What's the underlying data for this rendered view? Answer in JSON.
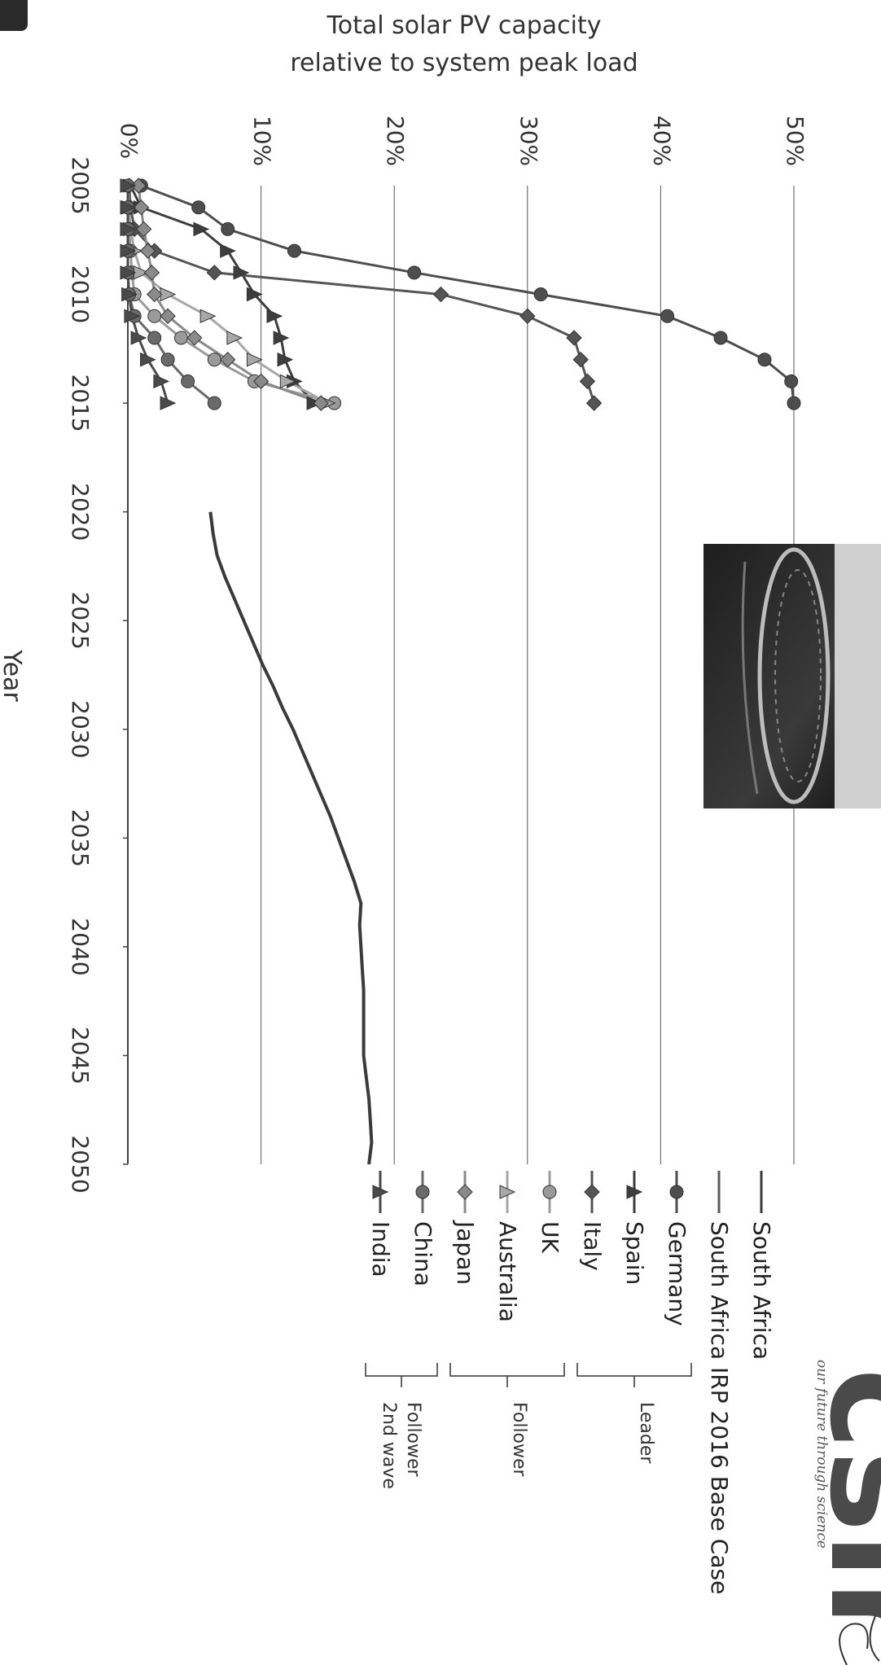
{
  "chart_data": {
    "type": "line",
    "title": "Total solar PV capacity relative to system peak load",
    "title_lines": [
      "Total solar PV capacity",
      "relative to system peak load"
    ],
    "xlabel": "Year",
    "ylabel": "",
    "xlim": [
      2005,
      2050
    ],
    "ylim": [
      0,
      0.5
    ],
    "x_ticks": [
      "2005",
      "2010",
      "2015",
      "2020",
      "2025",
      "2030",
      "2035",
      "2040",
      "2045",
      "2050"
    ],
    "y_ticks": [
      "0%",
      "10%",
      "20%",
      "30%",
      "40%",
      "50%"
    ],
    "grid": true,
    "orientation": "page rotated 90 degrees clockwise",
    "legend_position": "bottom",
    "series": [
      {
        "name": "South Africa",
        "marker": "none",
        "color": "#3a3a3a",
        "x": [
          2020,
          2021,
          2022,
          2023,
          2024,
          2025,
          2026,
          2027,
          2028,
          2029,
          2030,
          2031,
          2032,
          2033,
          2034,
          2035,
          2036,
          2037,
          2038,
          2039,
          2040,
          2041,
          2042,
          2043,
          2044,
          2045,
          2046,
          2047,
          2048,
          2049,
          2050
        ],
        "y": [
          0.062,
          0.064,
          0.067,
          0.073,
          0.08,
          0.087,
          0.094,
          0.101,
          0.109,
          0.116,
          0.124,
          0.131,
          0.138,
          0.145,
          0.152,
          0.158,
          0.164,
          0.17,
          0.175,
          0.174,
          0.175,
          0.176,
          0.177,
          0.177,
          0.177,
          0.177,
          0.179,
          0.181,
          0.182,
          0.183,
          0.181
        ]
      },
      {
        "name": "South Africa IRP 2016 Base Case",
        "marker": "none",
        "color": "#5a5a5a",
        "x": [],
        "y": []
      },
      {
        "name": "Germany",
        "marker": "circle",
        "color": "#4d4d4d",
        "x": [
          2005,
          2006,
          2007,
          2008,
          2009,
          2010,
          2011,
          2012,
          2013,
          2014,
          2015
        ],
        "y": [
          0.01,
          0.053,
          0.075,
          0.125,
          0.215,
          0.31,
          0.405,
          0.445,
          0.478,
          0.498,
          0.5
        ]
      },
      {
        "name": "Spain",
        "marker": "triangle",
        "color": "#3d3d3d",
        "x": [
          2005,
          2006,
          2007,
          2008,
          2009,
          2010,
          2011,
          2012,
          2013,
          2014,
          2015
        ],
        "y": [
          0.002,
          0.01,
          0.055,
          0.075,
          0.085,
          0.095,
          0.11,
          0.115,
          0.118,
          0.125,
          0.14
        ]
      },
      {
        "name": "Italy",
        "marker": "diamond",
        "color": "#555555",
        "x": [
          2005,
          2006,
          2007,
          2008,
          2009,
          2010,
          2011,
          2012,
          2013,
          2014,
          2015
        ],
        "y": [
          0.001,
          0.002,
          0.005,
          0.02,
          0.065,
          0.235,
          0.3,
          0.335,
          0.34,
          0.345,
          0.35
        ]
      },
      {
        "name": "UK",
        "marker": "circle",
        "color": "#9a9a9a",
        "x": [
          2005,
          2006,
          2007,
          2008,
          2009,
          2010,
          2011,
          2012,
          2013,
          2014,
          2015
        ],
        "y": [
          0.0,
          0.0,
          0.001,
          0.002,
          0.003,
          0.005,
          0.02,
          0.04,
          0.065,
          0.095,
          0.155
        ]
      },
      {
        "name": "Australia",
        "marker": "triangle",
        "color": "#a8a8a8",
        "x": [
          2005,
          2006,
          2007,
          2008,
          2009,
          2010,
          2011,
          2012,
          2013,
          2014,
          2015
        ],
        "y": [
          0.0,
          0.001,
          0.002,
          0.005,
          0.01,
          0.03,
          0.06,
          0.08,
          0.095,
          0.12,
          0.15
        ]
      },
      {
        "name": "Japan",
        "marker": "diamond",
        "color": "#8a8a8a",
        "x": [
          2005,
          2006,
          2007,
          2008,
          2009,
          2010,
          2011,
          2012,
          2013,
          2014,
          2015
        ],
        "y": [
          0.008,
          0.01,
          0.012,
          0.015,
          0.018,
          0.02,
          0.03,
          0.05,
          0.075,
          0.1,
          0.145
        ]
      },
      {
        "name": "China",
        "marker": "circle",
        "color": "#6a6a6a",
        "x": [
          2005,
          2006,
          2007,
          2008,
          2009,
          2010,
          2011,
          2012,
          2013,
          2014,
          2015
        ],
        "y": [
          0.0,
          0.0,
          0.0,
          0.0,
          0.0,
          0.001,
          0.005,
          0.02,
          0.03,
          0.045,
          0.065
        ]
      },
      {
        "name": "India",
        "marker": "triangle",
        "color": "#4a4a4a",
        "x": [
          2005,
          2006,
          2007,
          2008,
          2009,
          2010,
          2011,
          2012,
          2013,
          2014,
          2015
        ],
        "y": [
          0.0,
          0.0,
          0.0,
          0.0,
          0.0,
          0.001,
          0.003,
          0.008,
          0.015,
          0.025,
          0.03
        ]
      }
    ],
    "legend_groups": [
      {
        "label": "Leader",
        "label_lines": [
          "Leader"
        ],
        "members": [
          "Germany",
          "Spain",
          "Italy"
        ]
      },
      {
        "label": "Follower",
        "label_lines": [
          "Follower"
        ],
        "members": [
          "UK",
          "Australia",
          "Japan"
        ]
      },
      {
        "label": "Follower 2nd wave",
        "label_lines": [
          "Follower",
          "2nd wave"
        ],
        "members": [
          "China",
          "India"
        ]
      }
    ]
  },
  "logo": {
    "text": "csir",
    "tagline": "our future through science"
  }
}
